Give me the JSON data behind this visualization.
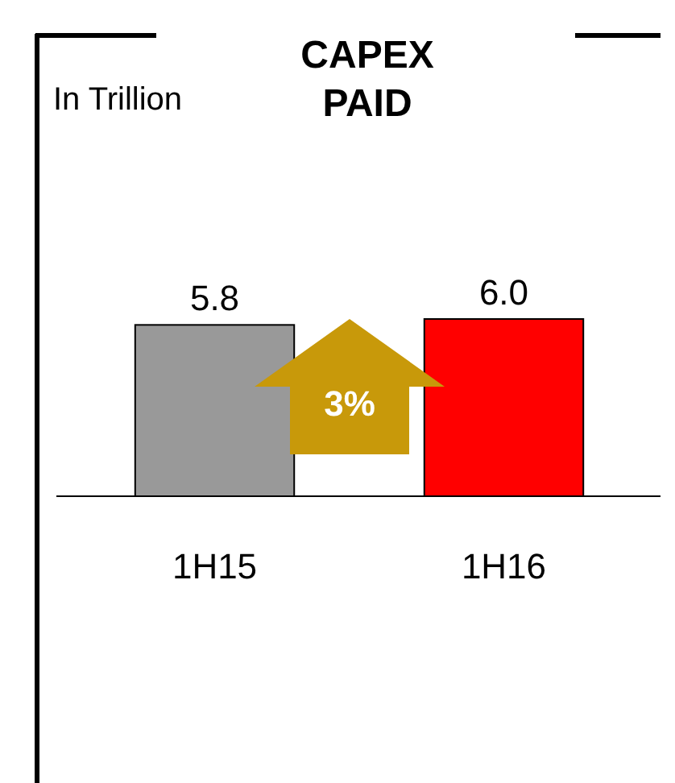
{
  "chart_data": {
    "type": "bar",
    "title": "CAPEX PAID",
    "annotations": [
      "In Trillion",
      "3%"
    ],
    "categories": [
      "1H15",
      "1H16"
    ],
    "values": [
      5.8,
      6.0
    ],
    "value_labels": [
      "5.8",
      "6.0"
    ],
    "colors": [
      "#999999",
      "#ff0000"
    ]
  }
}
